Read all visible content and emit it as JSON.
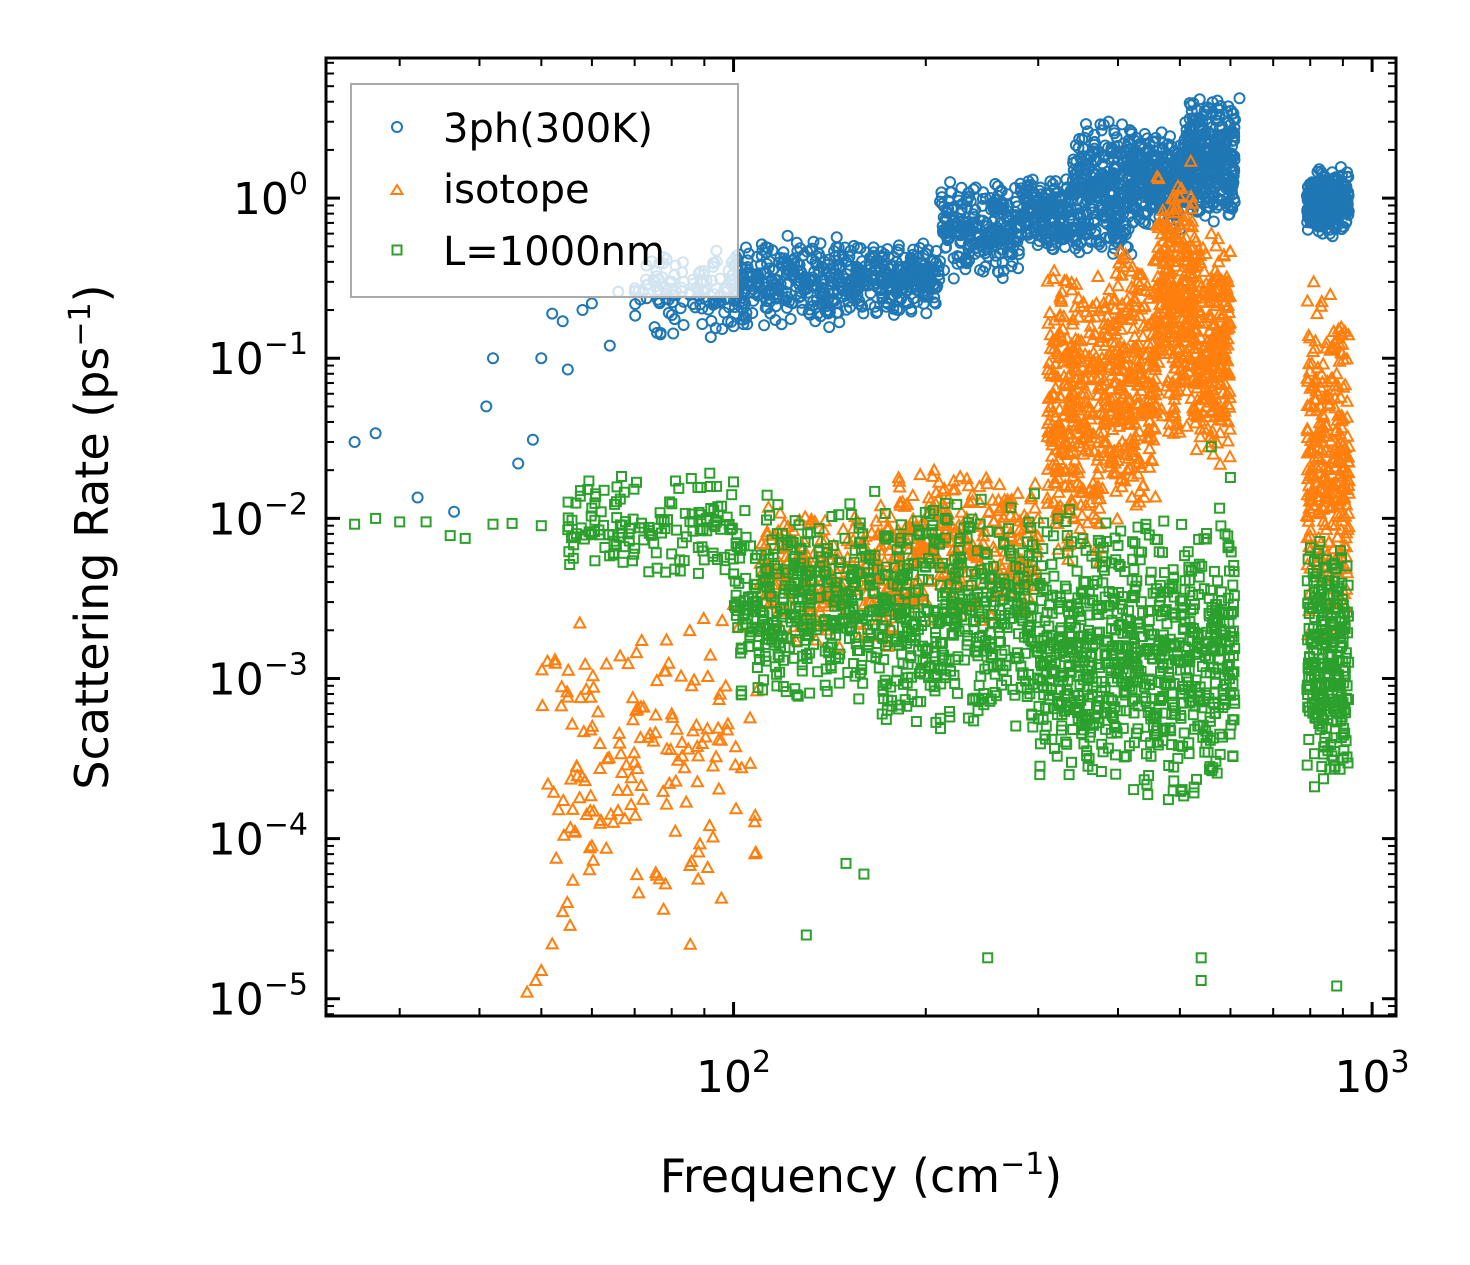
{
  "chart_data": {
    "type": "scatter",
    "xscale": "log",
    "yscale": "log",
    "xlim": [
      23,
      1090
    ],
    "ylim": [
      7.8e-06,
      7.5
    ],
    "xlabel": {
      "text": "Frequency (cm",
      "sup": "−1",
      "tail": ")"
    },
    "ylabel": {
      "text": "Scattering Rate (ps",
      "sup": "−1",
      "tail": ")"
    },
    "xticks": [
      {
        "value": 100,
        "base": "10",
        "exp": "2"
      },
      {
        "value": 1000,
        "base": "10",
        "exp": "3"
      }
    ],
    "yticks": [
      {
        "value": 1,
        "base": "10",
        "exp": "0"
      },
      {
        "value": 0.1,
        "base": "10",
        "exp": "−1"
      },
      {
        "value": 0.01,
        "base": "10",
        "exp": "−2"
      },
      {
        "value": 0.001,
        "base": "10",
        "exp": "−3"
      },
      {
        "value": 0.0001,
        "base": "10",
        "exp": "−4"
      },
      {
        "value": 1e-05,
        "base": "10",
        "exp": "−5"
      }
    ],
    "legend_position": "top-left",
    "series": [
      {
        "name": "3ph(300K)",
        "marker": "circle",
        "color": "#1f77b4",
        "sample_points": [
          [
            25.5,
            0.03
          ],
          [
            27.5,
            0.034
          ],
          [
            32,
            0.0135
          ],
          [
            36.5,
            0.011
          ],
          [
            41,
            0.05
          ],
          [
            42,
            0.1
          ],
          [
            46,
            0.022
          ],
          [
            48.5,
            0.031
          ],
          [
            50,
            0.1
          ],
          [
            52,
            0.19
          ],
          [
            54,
            0.17
          ],
          [
            55,
            0.085
          ],
          [
            58,
            0.2
          ],
          [
            60,
            0.22
          ],
          [
            64,
            0.12
          ],
          [
            66,
            0.26
          ],
          [
            70,
            0.26
          ],
          [
            75,
            0.3
          ],
          [
            80,
            0.3
          ],
          [
            90,
            0.35
          ],
          [
            100,
            0.38
          ],
          [
            120,
            0.42
          ],
          [
            150,
            0.4
          ],
          [
            180,
            0.32
          ],
          [
            200,
            0.45
          ],
          [
            230,
            0.7
          ],
          [
            260,
            0.85
          ],
          [
            300,
            0.75
          ],
          [
            340,
            1.3
          ],
          [
            380,
            1.8
          ],
          [
            420,
            2.6
          ],
          [
            470,
            2.2
          ],
          [
            520,
            3.8
          ],
          [
            560,
            2.5
          ],
          [
            620,
            4.2
          ],
          [
            820,
            1.0
          ],
          [
            880,
            0.8
          ],
          [
            910,
            0.7
          ]
        ],
        "segments": [
          {
            "x": [
              70,
              100
            ],
            "y": [
              0.12,
              0.55
            ],
            "n": 120
          },
          {
            "x": [
              100,
              150
            ],
            "y": [
              0.15,
              0.6
            ],
            "n": 280
          },
          {
            "x": [
              150,
              210
            ],
            "y": [
              0.18,
              0.55
            ],
            "n": 260
          },
          {
            "x": [
              210,
              280
            ],
            "y": [
              0.3,
              1.3
            ],
            "n": 240
          },
          {
            "x": [
              280,
              340
            ],
            "y": [
              0.45,
              1.4
            ],
            "n": 200
          },
          {
            "x": [
              340,
              420
            ],
            "y": [
              0.4,
              3.3
            ],
            "n": 320
          },
          {
            "x": [
              420,
              510
            ],
            "y": [
              0.6,
              2.8
            ],
            "n": 320
          },
          {
            "x": [
              510,
              610
            ],
            "y": [
              0.7,
              4.3
            ],
            "n": 360
          },
          {
            "x": [
              790,
              920
            ],
            "y": [
              0.55,
              1.6
            ],
            "n": 260
          }
        ]
      },
      {
        "name": "isotope",
        "marker": "triangle",
        "color": "#ff7f0e",
        "sample_points": [
          [
            47.5,
            1.1e-05
          ],
          [
            49,
            1.3e-05
          ],
          [
            50,
            1.5e-05
          ],
          [
            52,
            2.2e-05
          ],
          [
            54,
            3.5e-05
          ],
          [
            56,
            5.5e-05
          ],
          [
            60,
            9e-05
          ],
          [
            62,
            0.00013
          ],
          [
            66,
            0.0002
          ],
          [
            70,
            0.0003
          ],
          [
            74,
            0.00045
          ],
          [
            80,
            0.0006
          ],
          [
            86,
            0.0009
          ],
          [
            92,
            0.0014
          ],
          [
            96,
            0.0023
          ],
          [
            100,
            0.0029
          ],
          [
            130,
            0.005
          ],
          [
            170,
            0.012
          ],
          [
            210,
            0.011
          ],
          [
            260,
            0.013
          ],
          [
            300,
            0.01
          ],
          [
            330,
            0.03
          ],
          [
            370,
            0.22
          ],
          [
            420,
            0.35
          ],
          [
            480,
            0.4
          ],
          [
            520,
            1.7
          ],
          [
            560,
            0.6
          ],
          [
            590,
            0.3
          ],
          [
            810,
            0.3
          ],
          [
            860,
            0.25
          ],
          [
            880,
            0.08
          ]
        ],
        "segments": [
          {
            "x": [
              50,
              110
            ],
            "y": [
              2e-05,
              0.0035
            ],
            "n": 160
          },
          {
            "x": [
              110,
              180
            ],
            "y": [
              0.0015,
              0.012
            ],
            "n": 260
          },
          {
            "x": [
              180,
              300
            ],
            "y": [
              0.002,
              0.022
            ],
            "n": 300
          },
          {
            "x": [
              310,
              380
            ],
            "y": [
              0.004,
              0.5
            ],
            "n": 320
          },
          {
            "x": [
              380,
              460
            ],
            "y": [
              0.008,
              0.6
            ],
            "n": 320
          },
          {
            "x": [
              460,
              530
            ],
            "y": [
              0.03,
              1.8
            ],
            "n": 320
          },
          {
            "x": [
              530,
              600
            ],
            "y": [
              0.02,
              0.6
            ],
            "n": 240
          },
          {
            "x": [
              790,
              920
            ],
            "y": [
              0.0015,
              0.3
            ],
            "n": 300
          }
        ]
      },
      {
        "name": "L=1000nm",
        "marker": "square",
        "color": "#2ca02c",
        "sample_points": [
          [
            25.5,
            0.0092
          ],
          [
            27.5,
            0.01
          ],
          [
            30,
            0.0095
          ],
          [
            33,
            0.0095
          ],
          [
            36,
            0.0078
          ],
          [
            38,
            0.0075
          ],
          [
            42,
            0.0092
          ],
          [
            45,
            0.0093
          ],
          [
            50,
            0.009
          ],
          [
            55,
            0.0085
          ],
          [
            60,
            0.008
          ],
          [
            65,
            0.0072
          ],
          [
            70,
            0.0065
          ],
          [
            75,
            0.007
          ],
          [
            80,
            0.006
          ],
          [
            90,
            0.0055
          ],
          [
            100,
            0.0045
          ],
          [
            130,
            2.5e-05
          ],
          [
            150,
            7e-05
          ],
          [
            160,
            6e-05
          ],
          [
            250,
            1.8e-05
          ],
          [
            540,
            1.8e-05
          ],
          [
            540,
            1.3e-05
          ],
          [
            880,
            1.2e-05
          ],
          [
            560,
            0.028
          ],
          [
            600,
            0.018
          ]
        ],
        "segments": [
          {
            "x": [
              55,
              100
            ],
            "y": [
              0.004,
              0.02
            ],
            "n": 140
          },
          {
            "x": [
              100,
              170
            ],
            "y": [
              0.0006,
              0.015
            ],
            "n": 380
          },
          {
            "x": [
              170,
              300
            ],
            "y": [
              0.0004,
              0.015
            ],
            "n": 460
          },
          {
            "x": [
              300,
              420
            ],
            "y": [
              0.0002,
              0.012
            ],
            "n": 380
          },
          {
            "x": [
              420,
              610
            ],
            "y": [
              0.00015,
              0.012
            ],
            "n": 440
          },
          {
            "x": [
              790,
              920
            ],
            "y": [
              0.0002,
              0.008
            ],
            "n": 280
          }
        ]
      }
    ]
  }
}
